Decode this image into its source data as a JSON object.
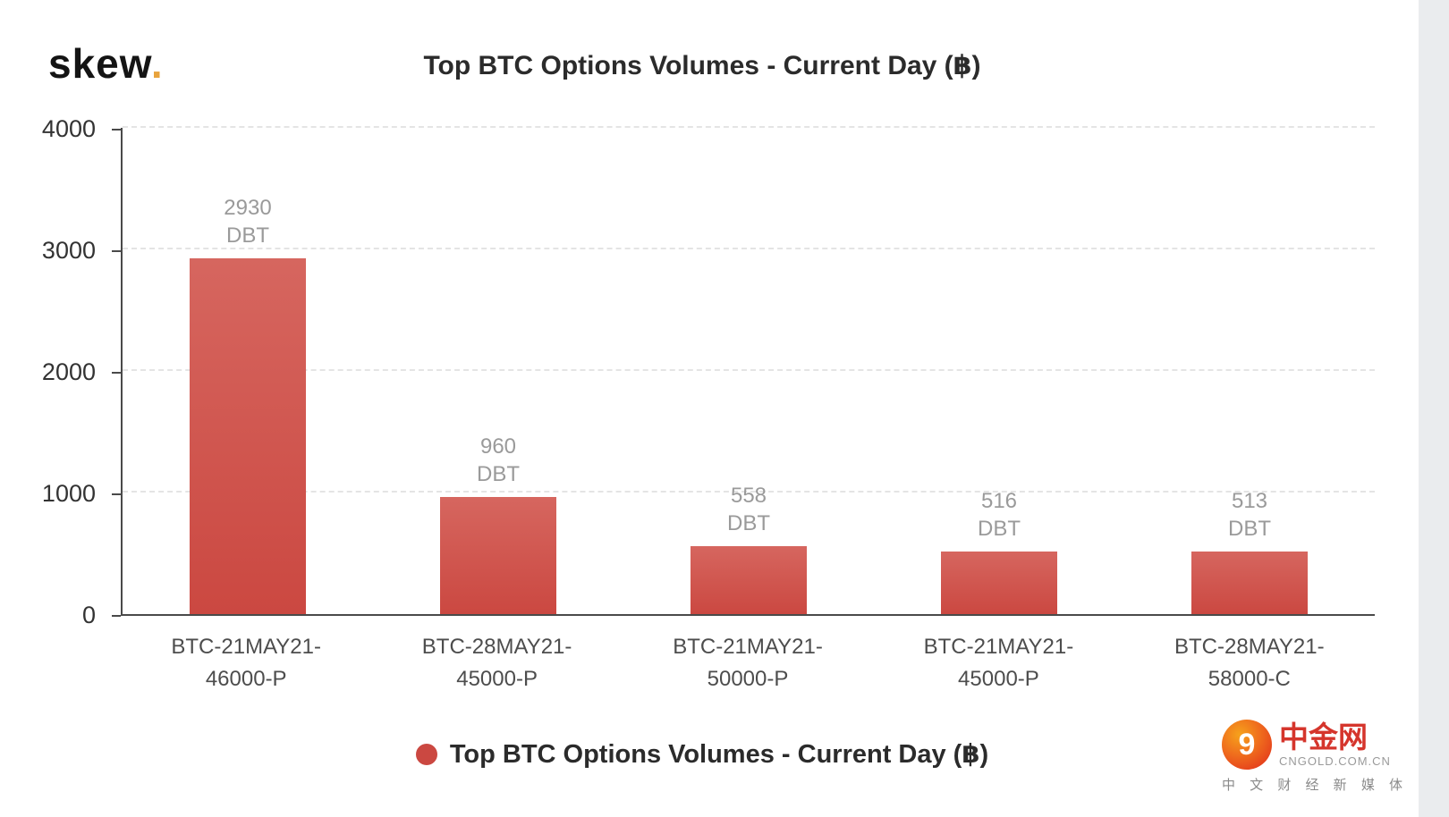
{
  "logo": {
    "text": "skew",
    "dot": "."
  },
  "chart_data": {
    "type": "bar",
    "title": "Top BTC Options Volumes - Current Day (฿)",
    "legend": "Top BTC Options Volumes - Current Day (฿)",
    "legend_position": "bottom",
    "unit": "DBT",
    "categories": [
      "BTC-21MAY21-\n46000-P",
      "BTC-28MAY21-\n45000-P",
      "BTC-21MAY21-\n50000-P",
      "BTC-21MAY21-\n45000-P",
      "BTC-28MAY21-\n58000-C"
    ],
    "values": [
      2930,
      960,
      558,
      516,
      513
    ],
    "bar_labels": [
      "2930 DBT",
      "960 DBT",
      "558 DBT",
      "516 DBT",
      "513 DBT"
    ],
    "ylim": [
      0,
      4000
    ],
    "yticks": [
      0,
      1000,
      2000,
      3000,
      4000
    ],
    "grid": "horizontal-dashed",
    "bar_color": "#cb4841",
    "bar_color_light": "#d6665f",
    "accent_gold": "#e8a33d"
  },
  "watermark": {
    "name": "中金网",
    "domain": "CNGOLD.COM.CN",
    "tagline": "中 文 财 经 新 媒 体"
  }
}
